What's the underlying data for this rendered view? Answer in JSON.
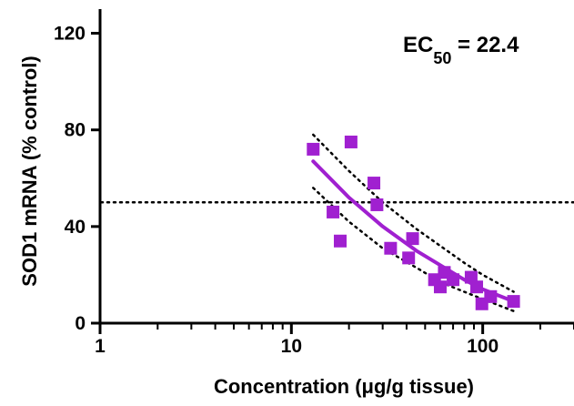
{
  "chart_data": {
    "type": "scatter",
    "xscale": "log",
    "xlabel": "Concentration (μg/g tissue)",
    "ylabel": "SOD1 mRNA  (% control)",
    "xlim": [
      1,
      300
    ],
    "ylim": [
      0,
      130
    ],
    "x_ticks": [
      1,
      10,
      100
    ],
    "y_ticks": [
      0,
      40,
      80,
      120
    ],
    "grid": false,
    "annotation": {
      "prefix": "EC",
      "subscript": "50",
      "suffix": " = 22.4"
    },
    "reference_line_y": 50,
    "point_color": "#a020d0",
    "points": [
      {
        "x": 13,
        "y": 72
      },
      {
        "x": 16.5,
        "y": 46
      },
      {
        "x": 18,
        "y": 34
      },
      {
        "x": 20.5,
        "y": 75
      },
      {
        "x": 27,
        "y": 58
      },
      {
        "x": 28,
        "y": 49
      },
      {
        "x": 33,
        "y": 31
      },
      {
        "x": 41,
        "y": 27
      },
      {
        "x": 43,
        "y": 35
      },
      {
        "x": 56,
        "y": 18
      },
      {
        "x": 60,
        "y": 15
      },
      {
        "x": 63,
        "y": 21
      },
      {
        "x": 70,
        "y": 18
      },
      {
        "x": 87,
        "y": 19
      },
      {
        "x": 93,
        "y": 15
      },
      {
        "x": 99,
        "y": 8
      },
      {
        "x": 110,
        "y": 11
      },
      {
        "x": 145,
        "y": 9
      }
    ],
    "fit": {
      "x": [
        13,
        20,
        30,
        45,
        60,
        80,
        100,
        145
      ],
      "y": [
        67,
        52,
        40,
        30,
        24,
        18,
        14,
        9
      ],
      "upper": [
        78,
        63,
        50,
        39,
        32,
        25,
        20,
        13
      ],
      "lower": [
        56,
        42,
        31,
        23,
        17,
        13,
        10,
        5
      ]
    }
  }
}
